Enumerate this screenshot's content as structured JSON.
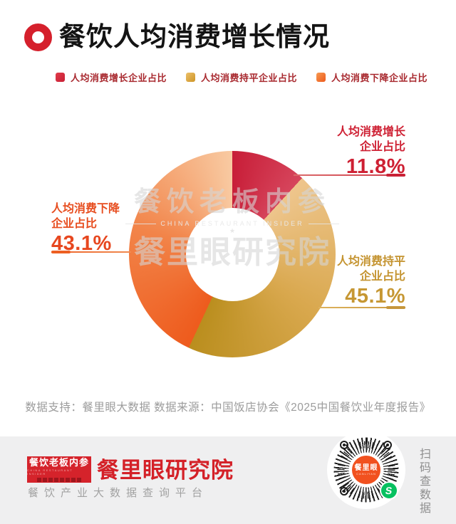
{
  "title": "餐饮人均消费增长情况",
  "legend": [
    {
      "label": "人均消费增长企业占比",
      "color": "#d7253c"
    },
    {
      "label": "人均消费持平企业占比",
      "color": "#dca93f"
    },
    {
      "label": "人均消费下降企业占比",
      "color": "#f0702c"
    }
  ],
  "chart_data": {
    "type": "pie",
    "donut": true,
    "title": "餐饮人均消费增长情况",
    "start_angle_deg": 0,
    "direction": "clockwise",
    "unit": "%",
    "segments": [
      {
        "label": "人均消费增长企业占比",
        "value": 11.8,
        "color_start": "#c81e38",
        "color_end": "#d6455c"
      },
      {
        "label": "人均消费持平企业占比",
        "value": 45.1,
        "color_start": "#eec58c",
        "color_end": "#ba8e1e"
      },
      {
        "label": "人均消费下降企业占比",
        "value": 43.1,
        "color_start": "#ee5b1d",
        "color_end": "#f8caa2"
      }
    ],
    "legend_position": "top",
    "labels_style": "outside leader lines"
  },
  "callouts": {
    "increase": {
      "line1": "人均消费增长",
      "line2": "企业占比",
      "value": "11.8%"
    },
    "flat": {
      "line1": "人均消费持平",
      "line2": "企业占比",
      "value": "45.1%"
    },
    "decrease": {
      "line1": "人均消费下降",
      "line2": "企业占比",
      "value": "43.1%"
    }
  },
  "watermark": {
    "line1": "餐饮老板内参",
    "line2": "CHINA RESTAURANT INSIDER",
    "star": "★",
    "line3": "餐里眼研究院"
  },
  "source_line": "数据支持：餐里眼大数据  数据来源：中国饭店协会《2025中国餐饮业年度报告》",
  "footer": {
    "logo_title": "餐饮老板内参",
    "logo_subtitle": "CHINA RESTAURANT INSIDER",
    "brand": "餐里眼研究院",
    "tagline": "餐饮产业大数据查询平台",
    "qr_center_title": "餐里眼",
    "qr_center_subtitle": "CANLIYAN",
    "qr_mini_program_glyph": "S",
    "scan_text": "扫码查数据"
  },
  "colors": {
    "brand_red": "#d5202c",
    "legend_text": "#a8282e",
    "increase_text": "#ce2033",
    "flat_text": "#c4932f",
    "decrease_text": "#e74d1f",
    "footer_bg": "#efeff0",
    "source_text": "#9c9c9c",
    "wechat_green": "#07c160",
    "qr_center_orange": "#f1511f"
  }
}
